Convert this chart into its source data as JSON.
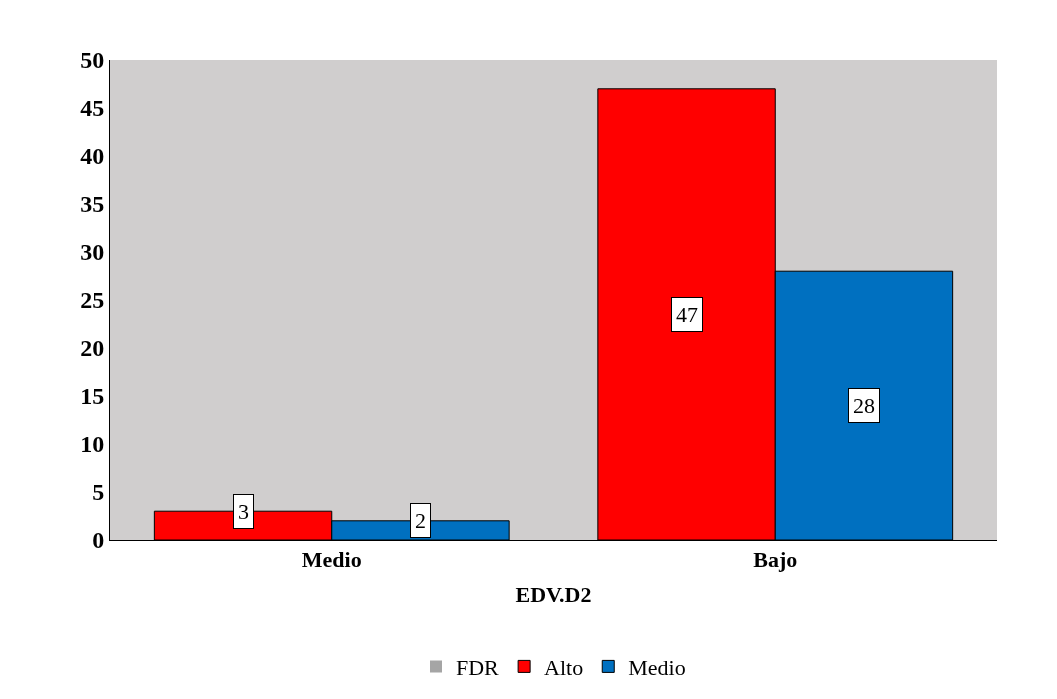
{
  "chart_data": {
    "type": "bar",
    "xlabel": "EDV.D2",
    "categories": [
      "Medio",
      "Bajo"
    ],
    "series": [
      {
        "name": "FDR",
        "color": "#a5a5a5",
        "values": [
          null,
          null
        ]
      },
      {
        "name": "Alto",
        "color": "#ff0000",
        "values": [
          3,
          47
        ]
      },
      {
        "name": "Medio",
        "color": "#0070c0",
        "values": [
          2,
          28
        ]
      }
    ],
    "ylim": [
      0,
      50
    ],
    "yticks": [
      0,
      5,
      10,
      15,
      20,
      25,
      30,
      35,
      40,
      45,
      50
    ],
    "grid": false,
    "legend": "bottom",
    "data_labels": true
  }
}
